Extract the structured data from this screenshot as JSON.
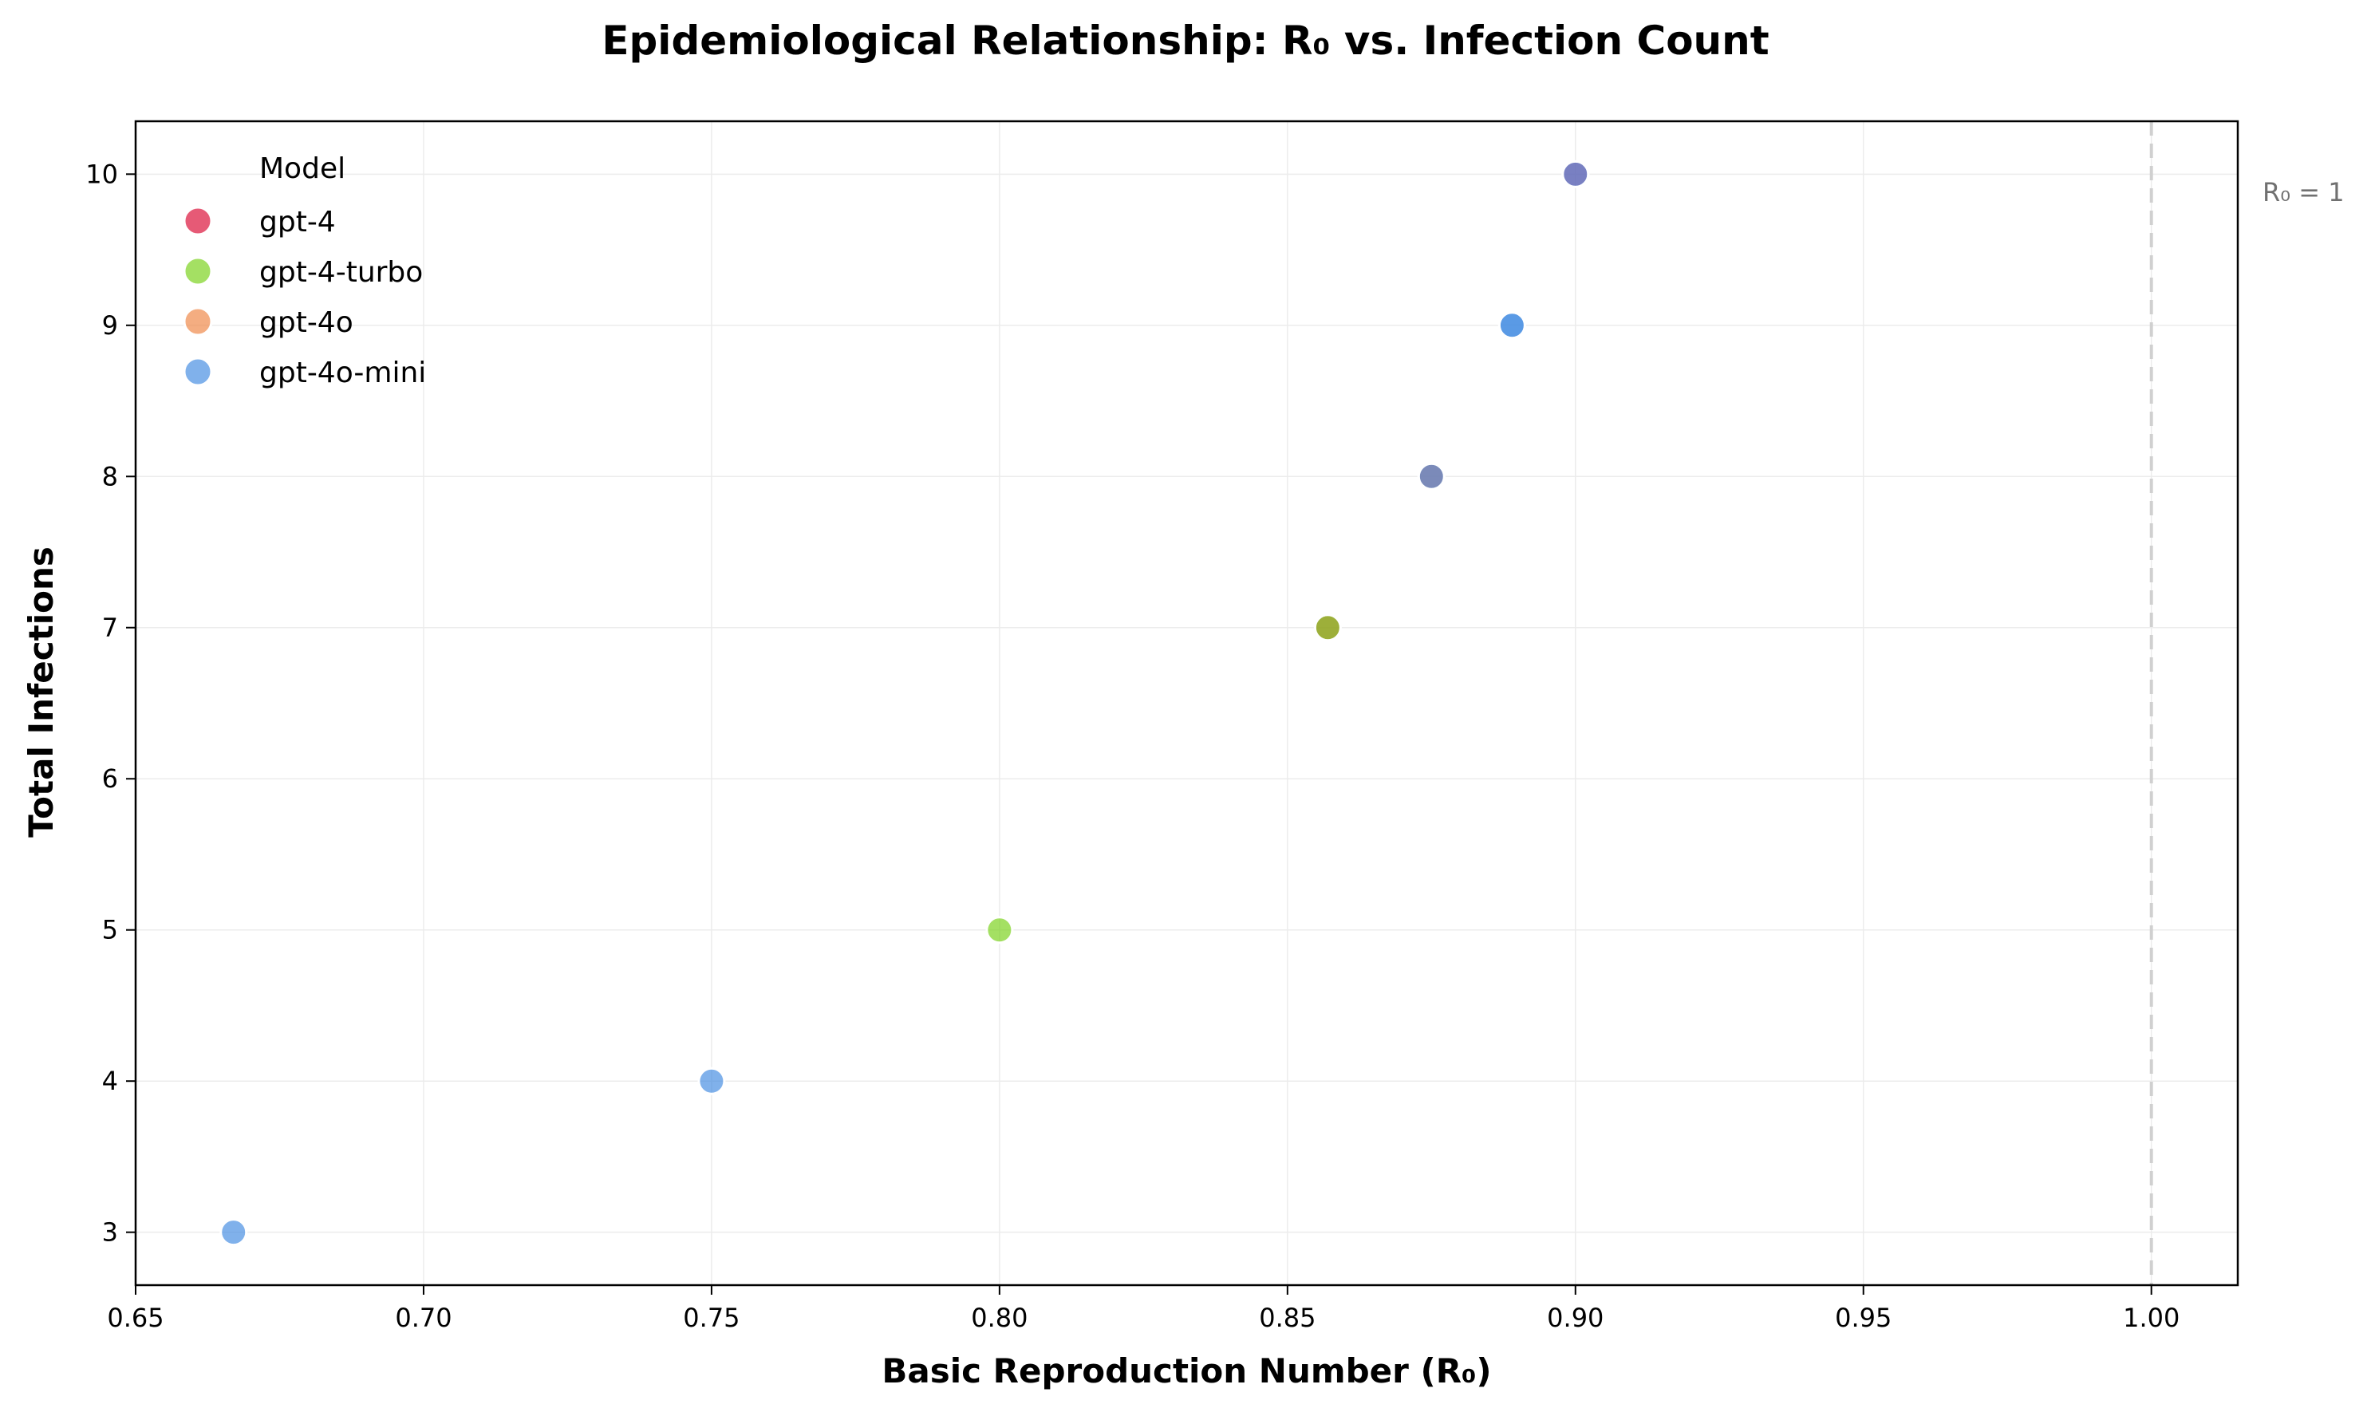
{
  "chart_data": {
    "type": "scatter",
    "title": "Epidemiological Relationship: R₀ vs. Infection Count",
    "xlabel": "Basic Reproduction Number (R₀)",
    "ylabel": "Total Infections",
    "xlim": [
      0.65,
      1.015
    ],
    "ylim": [
      2.65,
      10.35
    ],
    "xticks": [
      0.65,
      0.7,
      0.75,
      0.8,
      0.85,
      0.9,
      0.95,
      1.0
    ],
    "xtick_labels": [
      "0.65",
      "0.70",
      "0.75",
      "0.80",
      "0.85",
      "0.90",
      "0.95",
      "1.00"
    ],
    "yticks": [
      3,
      4,
      5,
      6,
      7,
      8,
      9,
      10
    ],
    "ytick_labels": [
      "3",
      "4",
      "5",
      "6",
      "7",
      "8",
      "9",
      "10"
    ],
    "grid": true,
    "legend": {
      "title": "Model",
      "placement": "top-left"
    },
    "series": [
      {
        "name": "gpt-4",
        "color": "#dc143c",
        "points": [
          {
            "x": 0.857,
            "y": 7
          },
          {
            "x": 0.875,
            "y": 8
          },
          {
            "x": 0.9,
            "y": 10
          }
        ]
      },
      {
        "name": "gpt-4-turbo",
        "color": "#7ed321",
        "points": [
          {
            "x": 0.8,
            "y": 5
          },
          {
            "x": 0.857,
            "y": 7
          }
        ]
      },
      {
        "name": "gpt-4o",
        "color": "#f08a4b",
        "points": [
          {
            "x": 0.875,
            "y": 8
          }
        ]
      },
      {
        "name": "gpt-4o-mini",
        "color": "#4a90e2",
        "points": [
          {
            "x": 0.667,
            "y": 3
          },
          {
            "x": 0.75,
            "y": 4
          },
          {
            "x": 0.875,
            "y": 8
          },
          {
            "x": 0.889,
            "y": 9
          },
          {
            "x": 0.889,
            "y": 9
          },
          {
            "x": 0.9,
            "y": 10
          }
        ]
      }
    ],
    "reference_line": {
      "x": 1.0,
      "label": "R₀ = 1",
      "color": "#d0d0d0"
    }
  }
}
